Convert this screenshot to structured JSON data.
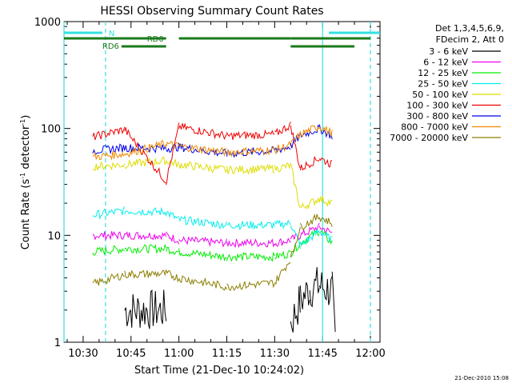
{
  "chart_data": {
    "type": "line",
    "title": "HESSI Observing Summary Count Rates",
    "xlabel": "Start Time (21-Dec-10 10:24:02)",
    "ylabel_main": "Count Rate (s",
    "ylabel_sup1": "-1",
    "ylabel_mid": " detector",
    "ylabel_sup2": "-1",
    "ylabel_end": ")",
    "y_scale": "log",
    "ylim": [
      1,
      1000
    ],
    "xlim": [
      "10:24",
      "12:03"
    ],
    "x_ticks": [
      "10:30",
      "10:45",
      "11:00",
      "11:15",
      "11:30",
      "11:45",
      "12:00"
    ],
    "y_ticks": [
      "1",
      "10",
      "100",
      "1000"
    ],
    "legend_placement": "right",
    "legend_header": [
      "Det 1,3,4,5,6,9,",
      "FDecim 2, Att 0"
    ],
    "timestamp": "21-Dec-2010 15:08",
    "flags": [
      {
        "label": "N",
        "color": "#33e0e0",
        "segments": [
          [
            "10:24",
            "10:36"
          ],
          [
            "11:47",
            "12:03"
          ]
        ]
      },
      {
        "label": "RD0",
        "color": "#1a7a1a",
        "segments": [
          [
            "10:24",
            "10:56"
          ],
          [
            "11:00",
            "11:35"
          ],
          [
            "11:35",
            "12:00"
          ]
        ]
      },
      {
        "label": "RD6",
        "color": "#1a7a1a",
        "segments": [
          [
            "10:42",
            "10:56"
          ],
          [
            "11:35",
            "11:55"
          ]
        ]
      }
    ],
    "markers": [
      {
        "type": "solid",
        "color": "#33e0e0",
        "times": [
          "10:24",
          "11:45"
        ]
      },
      {
        "type": "dashed",
        "color": "#33e0e0",
        "times": [
          "10:37",
          "12:00"
        ]
      }
    ],
    "series": [
      {
        "name": "3 - 6 keV",
        "color": "#000000",
        "points": [
          [
            "10:43",
            2
          ],
          [
            "10:56",
            2
          ],
          [
            "11:00",
            null
          ],
          [
            "11:35",
            1.5
          ],
          [
            "11:38",
            2.4
          ],
          [
            "11:41",
            3.2
          ],
          [
            "11:44",
            3.4
          ],
          [
            "11:48",
            3.0
          ],
          [
            "11:49",
            1
          ]
        ]
      },
      {
        "name": "6 - 12 keV",
        "color": "#ee00ee",
        "points": [
          [
            "10:33",
            10
          ],
          [
            "10:43",
            10
          ],
          [
            "10:56",
            10
          ],
          [
            "11:00",
            9
          ],
          [
            "11:15",
            8.5
          ],
          [
            "11:30",
            8.5
          ],
          [
            "11:35",
            9
          ],
          [
            "11:38",
            10
          ],
          [
            "11:44",
            12
          ],
          [
            "11:48",
            10.5
          ]
        ]
      },
      {
        "name": "12 - 25 keV",
        "color": "#00ee00",
        "points": [
          [
            "10:33",
            7
          ],
          [
            "10:43",
            7.5
          ],
          [
            "10:56",
            7.5
          ],
          [
            "11:00",
            7
          ],
          [
            "11:15",
            6.3
          ],
          [
            "11:30",
            6.3
          ],
          [
            "11:35",
            6.8
          ],
          [
            "11:38",
            8.5
          ],
          [
            "11:44",
            11
          ],
          [
            "11:48",
            8.5
          ]
        ]
      },
      {
        "name": "25 - 50 keV",
        "color": "#00eeee",
        "points": [
          [
            "10:33",
            15.5
          ],
          [
            "10:43",
            17
          ],
          [
            "10:56",
            16.5
          ],
          [
            "11:00",
            14
          ],
          [
            "11:15",
            12.5
          ],
          [
            "11:30",
            12.5
          ],
          [
            "11:35",
            13
          ],
          [
            "11:38",
            8
          ],
          [
            "11:44",
            11
          ],
          [
            "11:48",
            9
          ]
        ]
      },
      {
        "name": "50 - 100 keV",
        "color": "#dddd00",
        "points": [
          [
            "10:33",
            44
          ],
          [
            "10:43",
            46
          ],
          [
            "10:56",
            50
          ],
          [
            "11:00",
            46
          ],
          [
            "11:15",
            41
          ],
          [
            "11:30",
            42
          ],
          [
            "11:35",
            45
          ],
          [
            "11:38",
            18
          ],
          [
            "11:44",
            22
          ],
          [
            "11:48",
            20
          ]
        ]
      },
      {
        "name": "100 - 300 keV",
        "color": "#ee0000",
        "points": [
          [
            "10:33",
            83
          ],
          [
            "10:43",
            98
          ],
          [
            "10:56",
            32
          ],
          [
            "11:00",
            104
          ],
          [
            "11:15",
            85
          ],
          [
            "11:30",
            88
          ],
          [
            "11:35",
            108
          ],
          [
            "11:38",
            42
          ],
          [
            "11:44",
            53
          ],
          [
            "11:48",
            46
          ]
        ]
      },
      {
        "name": "300 - 800 keV",
        "color": "#0000ee",
        "points": [
          [
            "10:33",
            62
          ],
          [
            "10:43",
            66
          ],
          [
            "10:56",
            65
          ],
          [
            "11:00",
            67
          ],
          [
            "11:15",
            58
          ],
          [
            "11:30",
            62
          ],
          [
            "11:35",
            68
          ],
          [
            "11:38",
            86
          ],
          [
            "11:44",
            100
          ],
          [
            "11:48",
            85
          ]
        ]
      },
      {
        "name": "800 - 7000 keV",
        "color": "#ee8800",
        "points": [
          [
            "10:33",
            54
          ],
          [
            "10:43",
            58
          ],
          [
            "10:56",
            72
          ],
          [
            "11:00",
            68
          ],
          [
            "11:15",
            60
          ],
          [
            "11:30",
            63
          ],
          [
            "11:35",
            70
          ],
          [
            "11:38",
            88
          ],
          [
            "11:44",
            105
          ],
          [
            "11:48",
            90
          ]
        ]
      },
      {
        "name": "7000 - 20000 keV",
        "color": "#8b7d00",
        "points": [
          [
            "10:33",
            3.5
          ],
          [
            "10:43",
            4.3
          ],
          [
            "10:56",
            4.4
          ],
          [
            "11:00",
            4.0
          ],
          [
            "11:15",
            3.3
          ],
          [
            "11:30",
            3.6
          ],
          [
            "11:35",
            6
          ],
          [
            "11:38",
            12
          ],
          [
            "11:44",
            15
          ],
          [
            "11:48",
            13
          ]
        ]
      }
    ]
  }
}
